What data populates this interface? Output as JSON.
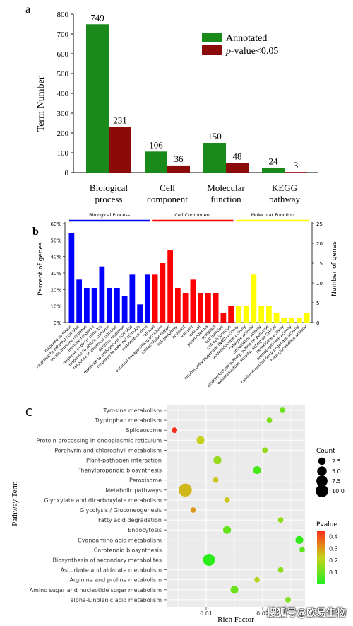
{
  "chart_data": [
    {
      "panel": "a",
      "type": "bar",
      "ylabel": "Term Number",
      "ylim": [
        0,
        800
      ],
      "yticks": [
        "0",
        "100",
        "200",
        "300",
        "400",
        "500",
        "600",
        "700",
        "800"
      ],
      "categories": [
        "Biological process",
        "Cell component",
        "Molecular function",
        "KEGG pathway"
      ],
      "category_lines": [
        [
          "Biological",
          "process"
        ],
        [
          "Cell",
          "component"
        ],
        [
          "Molecular",
          "function"
        ],
        [
          "KEGG",
          "pathway"
        ]
      ],
      "series": [
        {
          "name": "Annotated",
          "color": "#1a8a1a",
          "values": [
            749,
            106,
            150,
            24
          ],
          "labels": [
            "749",
            "106",
            "150",
            "24"
          ]
        },
        {
          "name": "p-value<0.05",
          "color": "#8b0a0a",
          "values": [
            231,
            36,
            48,
            3
          ],
          "labels": [
            "231",
            "36",
            "48",
            "3"
          ]
        }
      ],
      "legend": {
        "placement": "top-right",
        "entry1": "Annotated",
        "entry2_italic": "p",
        "entry2_rest": "-value<0.05"
      }
    },
    {
      "panel": "b",
      "type": "bar",
      "ylabel_left": "Percent of genes",
      "ylabel_right": "Number of genes",
      "left_ticks": [
        "0%",
        "10%",
        "20%",
        "30%",
        "40%",
        "50%",
        "60%"
      ],
      "right_ticks": [
        "0",
        "5",
        "10",
        "15",
        "20",
        "25"
      ],
      "ylim": [
        0,
        60
      ],
      "groups": [
        {
          "name": "Biological Process",
          "color": "#0000ff",
          "start": 0,
          "end": 10
        },
        {
          "name": "Cell Component",
          "color": "#ff0000",
          "start": 11,
          "end": 21
        },
        {
          "name": "Molecular Function",
          "color": "#ffff00",
          "start": 22,
          "end": 31
        }
      ],
      "categories": [
        "response to stress",
        "response to external stimulus",
        "innate immune response",
        "immune response",
        "response to biotic stimulus",
        "response to abiotic stimulus",
        "response to chemical stimulus",
        "defense response",
        "response to endogenous stimulus",
        "response to external stimulus",
        "response to virus",
        "cell wall",
        "external encapsulating structure",
        "extracellular region",
        "cell periphery",
        "apoplast",
        "vacuole",
        "cytosol",
        "plasmodesma",
        "symplast",
        "cell junction",
        "cell-cell junction",
        "alcohol dehydrogenase (NAD) activity",
        "oxidoreductase activity",
        "catalytic activity",
        "antioxidant activity",
        "oxidoreductase activity, acting on peroxide",
        "oxidoreductase activity, acting on CH-OH",
        "peroxidase activity",
        "aminopeptidase activity",
        "coniferyl-alcohol dehydrogenase activity",
        "beta-glucosidase activity"
      ],
      "values": [
        54,
        26,
        21,
        21,
        34,
        21,
        21,
        16,
        29,
        11,
        29,
        29,
        36,
        44,
        21,
        18,
        26,
        18,
        18,
        18,
        6,
        10,
        10,
        10,
        29,
        10,
        10,
        6,
        3,
        3,
        3,
        6
      ]
    },
    {
      "panel": "C",
      "type": "scatter",
      "ylabel": "Pathway Term",
      "xlabel": "Rich Factor",
      "xticks": [
        "0.01",
        "0.02"
      ],
      "xlim": [
        0.003,
        0.0275
      ],
      "legend_count_title": "Count",
      "legend_counts": [
        "2.5",
        "5.0",
        "7.5",
        "10.0"
      ],
      "legend_pvalue_title": "Pvalue",
      "legend_pvalues": [
        "0.4",
        "0.3",
        "0.2",
        "0.1"
      ],
      "terms": [
        "Tyrosine metabolism",
        "Tryptophan metabolism",
        "Spliceosome",
        "Protein processing in endoplasmic reticulum",
        "Porphyrin and chlorophyll metabolism",
        "Plant-pathogen interaction",
        "Phenylpropanoid biosynthesis",
        "Peroxisome",
        "Metabolic pathways",
        "Glyoxylate and dicarboxylate metabolism",
        "Glycolysis / Gluconeogenesis",
        "Fatty acid degradation",
        "Endocytosis",
        "Cyanoamino acid metabolism",
        "Carotenoid biosynthesis",
        "Biosynthesis of secondary metabolites",
        "Ascorbate and aldarate metabolism",
        "Arginine and proline metabolism",
        "Amino sugar and nucleotide sugar metabolism",
        "alpha-Linolenic acid metabolism"
      ],
      "points": [
        {
          "x": 0.0235,
          "count": 1,
          "p": 0.1
        },
        {
          "x": 0.0212,
          "count": 1,
          "p": 0.12
        },
        {
          "x": 0.0044,
          "count": 1,
          "p": 0.45
        },
        {
          "x": 0.009,
          "count": 3,
          "p": 0.22
        },
        {
          "x": 0.0204,
          "count": 1,
          "p": 0.15
        },
        {
          "x": 0.012,
          "count": 3,
          "p": 0.16
        },
        {
          "x": 0.019,
          "count": 3,
          "p": 0.05
        },
        {
          "x": 0.0117,
          "count": 1,
          "p": 0.24
        },
        {
          "x": 0.0063,
          "count": 11,
          "p": 0.26
        },
        {
          "x": 0.0137,
          "count": 1,
          "p": 0.24
        },
        {
          "x": 0.0077,
          "count": 1,
          "p": 0.3
        },
        {
          "x": 0.0232,
          "count": 1,
          "p": 0.15
        },
        {
          "x": 0.0137,
          "count": 3,
          "p": 0.09
        },
        {
          "x": 0.0265,
          "count": 3,
          "p": 0.02
        },
        {
          "x": 0.027,
          "count": 1,
          "p": 0.08
        },
        {
          "x": 0.0105,
          "count": 9,
          "p": 0.01
        },
        {
          "x": 0.0232,
          "count": 1,
          "p": 0.14
        },
        {
          "x": 0.019,
          "count": 1,
          "p": 0.2
        },
        {
          "x": 0.015,
          "count": 3,
          "p": 0.1
        },
        {
          "x": 0.0245,
          "count": 1,
          "p": 0.13
        }
      ]
    }
  ],
  "colors": {
    "annotated": "#1a8a1a",
    "significant": "#8b0a0a",
    "bp": "#0000ff",
    "cc": "#ff0000",
    "mf": "#ffff00",
    "panel_bg": "#ebebeb"
  },
  "watermark": "搜狐号@欧易生物"
}
